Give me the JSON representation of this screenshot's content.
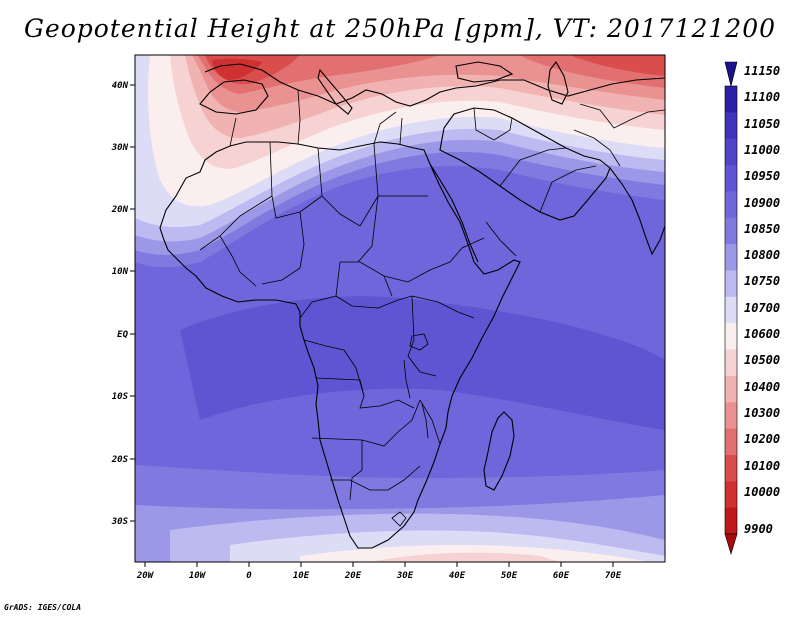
{
  "title": "Geopotential Height at 250hPa [gpm], VT: 2017121200",
  "credit": "GrADS: IGES/COLA",
  "map": {
    "lat_ticks": [
      "40N",
      "30N",
      "20N",
      "10N",
      "EQ",
      "10S",
      "20S",
      "30S"
    ],
    "lon_ticks": [
      "20W",
      "10W",
      "0",
      "10E",
      "20E",
      "30E",
      "40E",
      "50E",
      "60E",
      "70E"
    ]
  },
  "colorbar": {
    "levels": [
      "11150",
      "11100",
      "11050",
      "11000",
      "10950",
      "10900",
      "10850",
      "10800",
      "10750",
      "10700",
      "10600",
      "10500",
      "10400",
      "10300",
      "10200",
      "10100",
      "10000",
      "9900"
    ],
    "colors": [
      "#1a128c",
      "#2a20a8",
      "#3f34bd",
      "#5045c8",
      "#5e55d2",
      "#6e66da",
      "#8079e0",
      "#9c98e8",
      "#bcbaf0",
      "#dcdcf7",
      "#fbeeee",
      "#f7d2d2",
      "#f1b2b2",
      "#ea9292",
      "#e27070",
      "#d94d4d",
      "#cf3030",
      "#c01818",
      "#a80a0a"
    ]
  }
}
